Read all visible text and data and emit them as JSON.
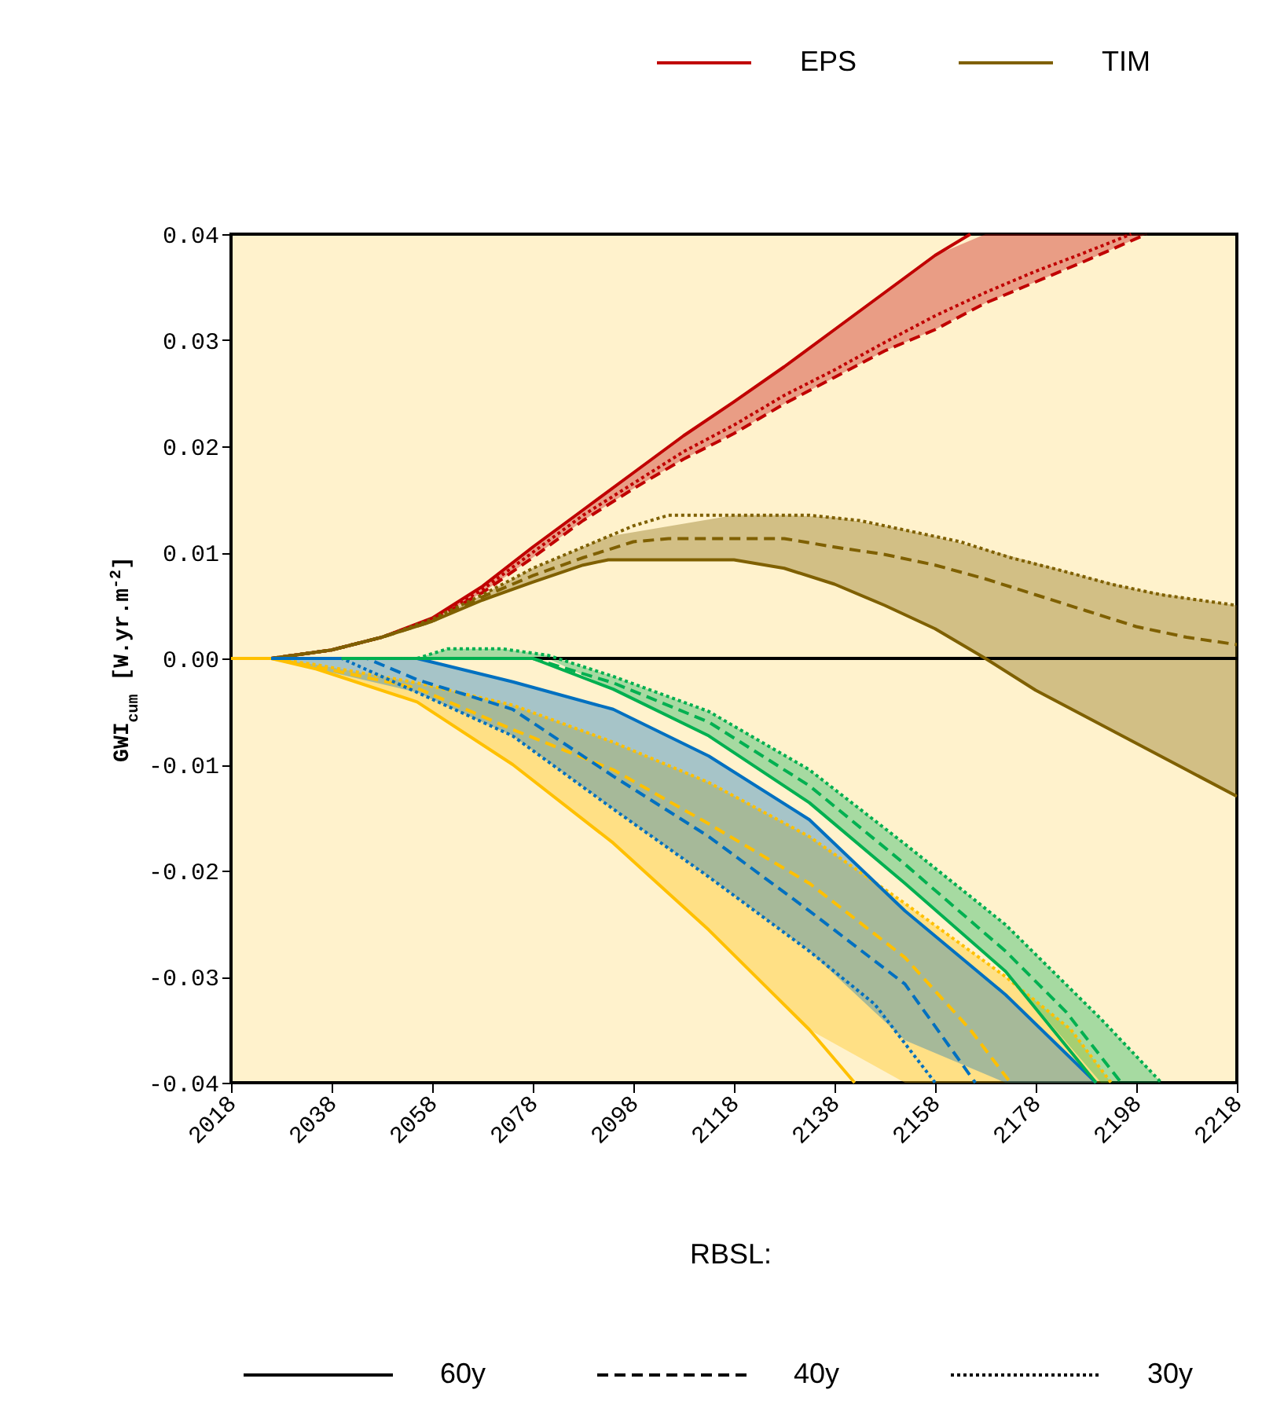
{
  "chart_data": {
    "type": "line",
    "ylabel": "GWI$_{cum}$ [W.yr.m$^{-2}$]",
    "legend_title": "RBSL:",
    "annotations": [
      "60y",
      "40y",
      "30y"
    ],
    "xlim": [
      2018,
      2218
    ],
    "xticks": [
      2018,
      2038,
      2058,
      2078,
      2098,
      2118,
      2138,
      2158,
      2178,
      2198,
      2218
    ],
    "ylim": [
      -0.04,
      0.04
    ],
    "yticks": [
      -0.04,
      -0.03,
      -0.02,
      -0.01,
      {
        "value": 0,
        "label": "0.00"
      },
      0.01,
      0.02,
      0.03,
      0.04
    ],
    "legend": "top right",
    "grid": false,
    "ref_lines": [
      {
        "axis": "y",
        "value": 0,
        "color": "#000000"
      }
    ],
    "series": [
      {
        "name": "EPS",
        "color": "#c00000",
        "line_style": "solid",
        "x": [
          2018,
          2026,
          2038,
          2048,
          2058,
          2068,
          2078,
          2088,
          2098,
          2108,
          2118,
          2128,
          2138,
          2148,
          2158,
          2165
        ],
        "values": [
          0,
          0,
          0.0008,
          0.002,
          0.0038,
          0.0068,
          0.0105,
          0.014,
          0.0175,
          0.021,
          0.0242,
          0.0275,
          0.031,
          0.0345,
          0.038,
          0.04
        ]
      },
      {
        "color": "#c00000",
        "line_style": "dashed",
        "x": [
          2018,
          2026,
          2038,
          2048,
          2058,
          2068,
          2078,
          2088,
          2098,
          2108,
          2118,
          2128,
          2138,
          2148,
          2158,
          2168,
          2178,
          2188,
          2200
        ],
        "values": [
          0,
          0,
          0.0008,
          0.002,
          0.0036,
          0.0062,
          0.0095,
          0.013,
          0.016,
          0.0188,
          0.0212,
          0.024,
          0.0265,
          0.029,
          0.031,
          0.0335,
          0.0355,
          0.0375,
          0.04
        ],
        "lower": [
          0,
          0,
          0.0008,
          0.002,
          0.0036,
          0.0062,
          0.0095,
          0.013,
          0.016,
          0.0188,
          0.0212,
          0.024,
          0.0265,
          0.029,
          0.031,
          0.0335,
          0.0355,
          0.0375,
          0.04
        ],
        "upper": [
          0,
          0,
          0.0008,
          0.002,
          0.0038,
          0.0068,
          0.0105,
          0.014,
          0.0175,
          0.021,
          0.0242,
          0.0275,
          0.031,
          0.0345,
          0.038,
          0.04,
          0.04,
          0.04,
          0.04
        ]
      },
      {
        "color": "#c00000",
        "line_style": "dotted",
        "x": [
          2018,
          2026,
          2038,
          2048,
          2058,
          2068,
          2078,
          2088,
          2098,
          2108,
          2118,
          2128,
          2138,
          2148,
          2158,
          2168,
          2178,
          2188,
          2197
        ],
        "values": [
          0,
          0,
          0.0008,
          0.002,
          0.0037,
          0.0065,
          0.01,
          0.0135,
          0.0165,
          0.0195,
          0.022,
          0.0248,
          0.0272,
          0.0298,
          0.0323,
          0.0345,
          0.0365,
          0.0383,
          0.04
        ]
      },
      {
        "name": "TIM",
        "color": "#7f6000",
        "line_style": "solid",
        "x": [
          2018,
          2026,
          2038,
          2048,
          2058,
          2068,
          2078,
          2088,
          2093,
          2118,
          2128,
          2138,
          2148,
          2158,
          2168,
          2178,
          2188,
          2198,
          2208,
          2218
        ],
        "values": [
          0,
          0,
          0.0008,
          0.002,
          0.0035,
          0.0055,
          0.0072,
          0.0088,
          0.0093,
          0.0093,
          0.0085,
          0.007,
          0.005,
          0.0028,
          0,
          -0.003,
          -0.0055,
          -0.008,
          -0.0105,
          -0.013
        ],
        "lower": [
          0,
          0,
          0.0008,
          0.002,
          0.0035,
          0.0055,
          0.0072,
          0.0088,
          0.0093,
          0.0093,
          0.0085,
          0.007,
          0.005,
          0.0028,
          0,
          -0.003,
          -0.0055,
          -0.008,
          -0.0105,
          -0.013
        ],
        "upper": [
          0,
          0,
          0.0008,
          0.002,
          0.0037,
          0.006,
          0.0085,
          0.0105,
          0.0115,
          0.0135,
          0.0135,
          0.0133,
          0.0125,
          0.0115,
          0.0103,
          0.009,
          0.0077,
          0.0065,
          0.0057,
          0.005
        ]
      },
      {
        "color": "#7f6000",
        "line_style": "dashed",
        "x": [
          2018,
          2026,
          2038,
          2048,
          2058,
          2068,
          2078,
          2088,
          2098,
          2105,
          2128,
          2138,
          2148,
          2158,
          2168,
          2178,
          2188,
          2198,
          2208,
          2218
        ],
        "values": [
          0,
          0,
          0.0008,
          0.002,
          0.0035,
          0.0058,
          0.0078,
          0.0095,
          0.011,
          0.0113,
          0.0113,
          0.0105,
          0.0098,
          0.0088,
          0.0075,
          0.006,
          0.0045,
          0.003,
          0.002,
          0.0013
        ]
      },
      {
        "color": "#7f6000",
        "line_style": "dotted",
        "x": [
          2018,
          2026,
          2038,
          2048,
          2058,
          2068,
          2078,
          2088,
          2098,
          2105,
          2133,
          2143,
          2153,
          2163,
          2173,
          2183,
          2193,
          2203,
          2218
        ],
        "values": [
          0,
          0,
          0.0008,
          0.002,
          0.0037,
          0.006,
          0.0085,
          0.0105,
          0.0125,
          0.0135,
          0.0135,
          0.013,
          0.012,
          0.011,
          0.0095,
          0.0083,
          0.007,
          0.006,
          0.005
        ]
      },
      {
        "color": "#ffc000",
        "line_style": "solid",
        "x": [
          2018,
          2026,
          2035,
          2055,
          2074,
          2094,
          2113,
          2133,
          2142
        ],
        "values": [
          0,
          0,
          -0.001,
          -0.0041,
          -0.01,
          -0.0174,
          -0.0256,
          -0.035,
          -0.04
        ]
      },
      {
        "color": "#ffc000",
        "line_style": "dashed",
        "x": [
          2018,
          2026,
          2035,
          2055,
          2074,
          2094,
          2113,
          2133,
          2152,
          2165,
          2173
        ],
        "values": [
          0,
          0,
          -0.0008,
          -0.0028,
          -0.0067,
          -0.0105,
          -0.0156,
          -0.0212,
          -0.0282,
          -0.035,
          -0.04
        ]
      },
      {
        "color": "#ffc000",
        "line_style": "dotted",
        "x": [
          2018,
          2026,
          2035,
          2055,
          2074,
          2094,
          2113,
          2133,
          2152,
          2172,
          2185,
          2193
        ],
        "values": [
          0,
          0,
          -0.0006,
          -0.0023,
          -0.0044,
          -0.0079,
          -0.0117,
          -0.0168,
          -0.0231,
          -0.03,
          -0.035,
          -0.04
        ],
        "lower": [
          0,
          0,
          -0.001,
          -0.0041,
          -0.01,
          -0.0174,
          -0.0256,
          -0.035,
          -0.04,
          -0.04,
          -0.04,
          -0.04
        ],
        "upper": [
          0,
          0,
          -0.0006,
          -0.0023,
          -0.0044,
          -0.0079,
          -0.0117,
          -0.0168,
          -0.0231,
          -0.03,
          -0.035,
          -0.04
        ]
      },
      {
        "color": "#0070c0",
        "line_style": "solid",
        "x": [
          2026,
          2055,
          2074,
          2094,
          2113,
          2133,
          2152,
          2172,
          2190
        ],
        "values": [
          0,
          0,
          -0.0022,
          -0.0048,
          -0.0092,
          -0.0152,
          -0.0238,
          -0.0317,
          -0.04
        ],
        "lower": [
          0,
          -0.0032,
          -0.0073,
          -0.0142,
          -0.0206,
          -0.0276,
          -0.036,
          -0.04,
          -0.04
        ],
        "upper": [
          0,
          0,
          -0.0022,
          -0.0048,
          -0.0092,
          -0.0152,
          -0.0238,
          -0.0317,
          -0.04
        ]
      },
      {
        "color": "#0070c0",
        "line_style": "dashed",
        "x": [
          2026,
          2045,
          2055,
          2074,
          2094,
          2113,
          2133,
          2152,
          2166
        ],
        "values": [
          0,
          0,
          -0.002,
          -0.0048,
          -0.0111,
          -0.0168,
          -0.0238,
          -0.0307,
          -0.04
        ]
      },
      {
        "color": "#0070c0",
        "line_style": "dotted",
        "x": [
          2026,
          2040,
          2055,
          2074,
          2094,
          2113,
          2133,
          2146,
          2158
        ],
        "values": [
          0,
          0,
          -0.0032,
          -0.0073,
          -0.0142,
          -0.0206,
          -0.0276,
          -0.0326,
          -0.04
        ]
      },
      {
        "color": "#00b050",
        "line_style": "solid",
        "x": [
          2040,
          2078,
          2094,
          2113,
          2133,
          2152,
          2172,
          2190
        ],
        "values": [
          0,
          0,
          -0.0029,
          -0.0073,
          -0.0136,
          -0.0212,
          -0.0295,
          -0.04
        ]
      },
      {
        "color": "#00b050",
        "line_style": "dashed",
        "x": [
          2040,
          2078,
          2094,
          2113,
          2133,
          2152,
          2172,
          2184,
          2195
        ],
        "values": [
          0,
          0,
          -0.0023,
          -0.006,
          -0.012,
          -0.0194,
          -0.0276,
          -0.0333,
          -0.04
        ]
      },
      {
        "color": "#00b050",
        "line_style": "dotted",
        "x": [
          2040,
          2055,
          2061,
          2072,
          2081,
          2094,
          2113,
          2133,
          2152,
          2172,
          2191,
          2203
        ],
        "values": [
          0,
          0,
          0.0009,
          0.0009,
          0.0003,
          -0.0017,
          -0.005,
          -0.0105,
          -0.0175,
          -0.0251,
          -0.034,
          -0.04
        ],
        "lower": [
          0,
          0,
          0,
          0,
          0,
          -0.0029,
          -0.0073,
          -0.0136,
          -0.0212,
          -0.0295,
          -0.04,
          -0.04
        ],
        "upper": [
          0,
          0,
          0.0009,
          0.0009,
          0.0003,
          -0.0017,
          -0.005,
          -0.0105,
          -0.0175,
          -0.0251,
          -0.034,
          -0.04
        ]
      }
    ]
  }
}
